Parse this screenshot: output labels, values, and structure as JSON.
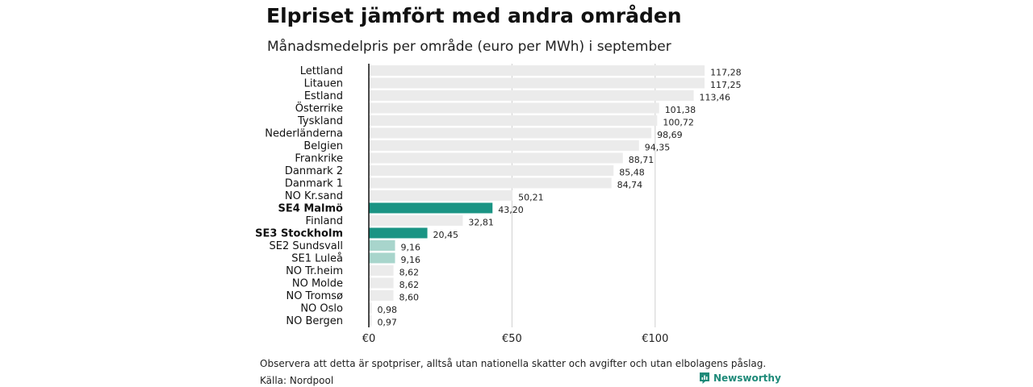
{
  "title": "Elpriset jämfört med andra områden",
  "subtitle": "Månadsmedelpris per område (euro per MWh) i september",
  "footnote": "Observera att detta är spotpriser, alltså utan nationella skatter och avgifter och utan elbolagens påslag.",
  "source": "Källa: Nordpool",
  "brand": "Newsworthy",
  "colors": {
    "default_bar": "#ebebeb",
    "highlight_bar": "#1a9484",
    "highlight_light_bar": "#a8d5cc",
    "axis_line": "#111111",
    "grid_line": "#cfcfcf",
    "brand": "#1e8a79"
  },
  "chart_data": {
    "type": "bar",
    "orientation": "horizontal",
    "title": "Elpriset jämfört med andra områden",
    "subtitle": "Månadsmedelpris per område (euro per MWh) i september",
    "xlim": [
      0,
      120
    ],
    "grid": true,
    "ticks": [
      {
        "value": 0,
        "label": "€0"
      },
      {
        "value": 50,
        "label": "€50"
      },
      {
        "value": 100,
        "label": "€100"
      }
    ],
    "categories": [
      "Lettland",
      "Litauen",
      "Estland",
      "Österrike",
      "Tyskland",
      "Nederländerna",
      "Belgien",
      "Frankrike",
      "Danmark  2",
      "Danmark  1",
      "NO Kr.sand",
      "SE4 Malmö",
      "Finland",
      "SE3 Stockholm",
      "SE2  Sundsvall",
      "SE1  Luleå",
      "NO Tr.heim",
      "NO Molde",
      "NO Tromsø",
      "NO Oslo",
      "NO Bergen"
    ],
    "values": [
      117.28,
      117.25,
      113.46,
      101.38,
      100.72,
      98.69,
      94.35,
      88.71,
      85.48,
      84.74,
      50.21,
      43.2,
      32.81,
      20.45,
      9.16,
      9.16,
      8.62,
      8.62,
      8.6,
      0.98,
      0.97
    ],
    "value_labels": [
      "117,28",
      "117,25",
      "113,46",
      "101,38",
      "100,72",
      "98,69",
      "94,35",
      "88,71",
      "85,48",
      "84,74",
      "50,21",
      "43,20",
      "32,81",
      "20,45",
      "9,16",
      "9,16",
      "8,62",
      "8,62",
      "8,60",
      "0,98",
      "0,97"
    ],
    "highlight": [
      "default",
      "default",
      "default",
      "default",
      "default",
      "default",
      "default",
      "default",
      "default",
      "default",
      "default",
      "strong",
      "default",
      "strong",
      "light",
      "light",
      "default",
      "default",
      "default",
      "default",
      "default"
    ]
  }
}
